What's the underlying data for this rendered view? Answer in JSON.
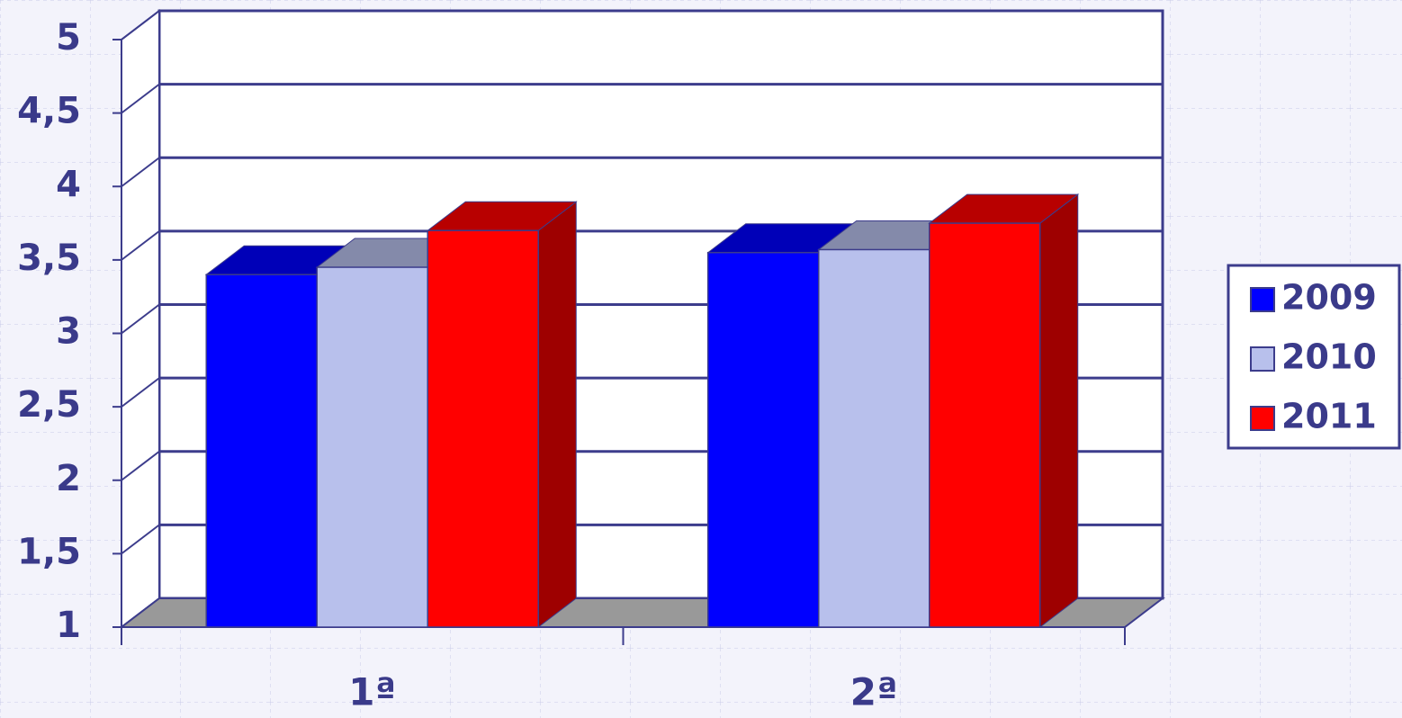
{
  "chart_data": {
    "type": "bar3d",
    "categories": [
      "1ª",
      "2ª"
    ],
    "series": [
      {
        "name": "2009",
        "color": "#0000ff",
        "values": [
          3.4,
          3.55
        ]
      },
      {
        "name": "2010",
        "color": "#b8c0ec",
        "values": [
          3.45,
          3.57
        ]
      },
      {
        "name": "2011",
        "color": "#ff0000",
        "values": [
          3.7,
          3.75
        ]
      }
    ],
    "ylim": [
      1,
      5
    ],
    "yticks": [
      1,
      {
        "value": 1.5,
        "label": "1,5"
      },
      2,
      {
        "value": 2.5,
        "label": "2,5"
      },
      3,
      {
        "value": 3.5,
        "label": "3,5"
      },
      4,
      {
        "value": 4.5,
        "label": "4,5"
      },
      5
    ],
    "grid": true,
    "legend": "right"
  }
}
